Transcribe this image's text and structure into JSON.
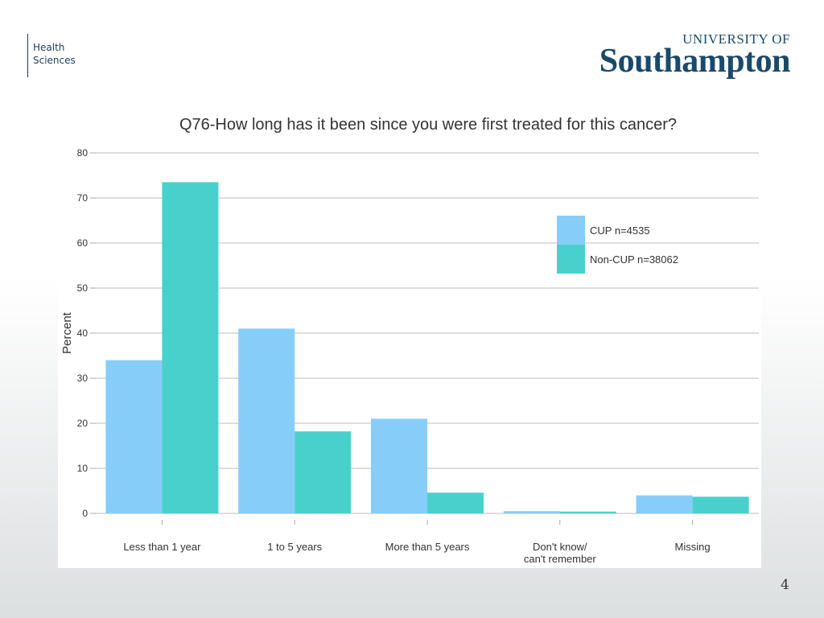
{
  "header": {
    "unit_line1": "Health",
    "unit_line2": "Sciences",
    "logo_top": "UNIVERSITY OF",
    "logo_main": "Southampton"
  },
  "page_number": "4",
  "colors": {
    "cup": "#87cdfa",
    "noncup": "#48d1cc",
    "grid": "#d4d4d4",
    "text": "#333333",
    "brand": "#1a4a6b"
  },
  "chart_data": {
    "type": "bar",
    "title": "Q76-How long has it been since you were first treated for this cancer?",
    "xlabel": "",
    "ylabel": "Percent",
    "ylim": [
      0,
      80
    ],
    "yticks": [
      0,
      10,
      20,
      30,
      40,
      50,
      60,
      70,
      80
    ],
    "categories": [
      [
        "Less than 1 year"
      ],
      [
        "1 to 5 years"
      ],
      [
        "More than 5 years"
      ],
      [
        "Don't know/",
        "can't remember"
      ],
      [
        "Missing"
      ]
    ],
    "series": [
      {
        "name": "CUP n=4535",
        "color": "#87cdfa",
        "values": [
          34,
          41,
          21,
          0.5,
          4
        ]
      },
      {
        "name": "Non-CUP n=38062",
        "color": "#48d1cc",
        "values": [
          73.5,
          18.2,
          4.6,
          0.4,
          3.7
        ]
      }
    ],
    "grid": true,
    "legend_position": "top-right"
  }
}
